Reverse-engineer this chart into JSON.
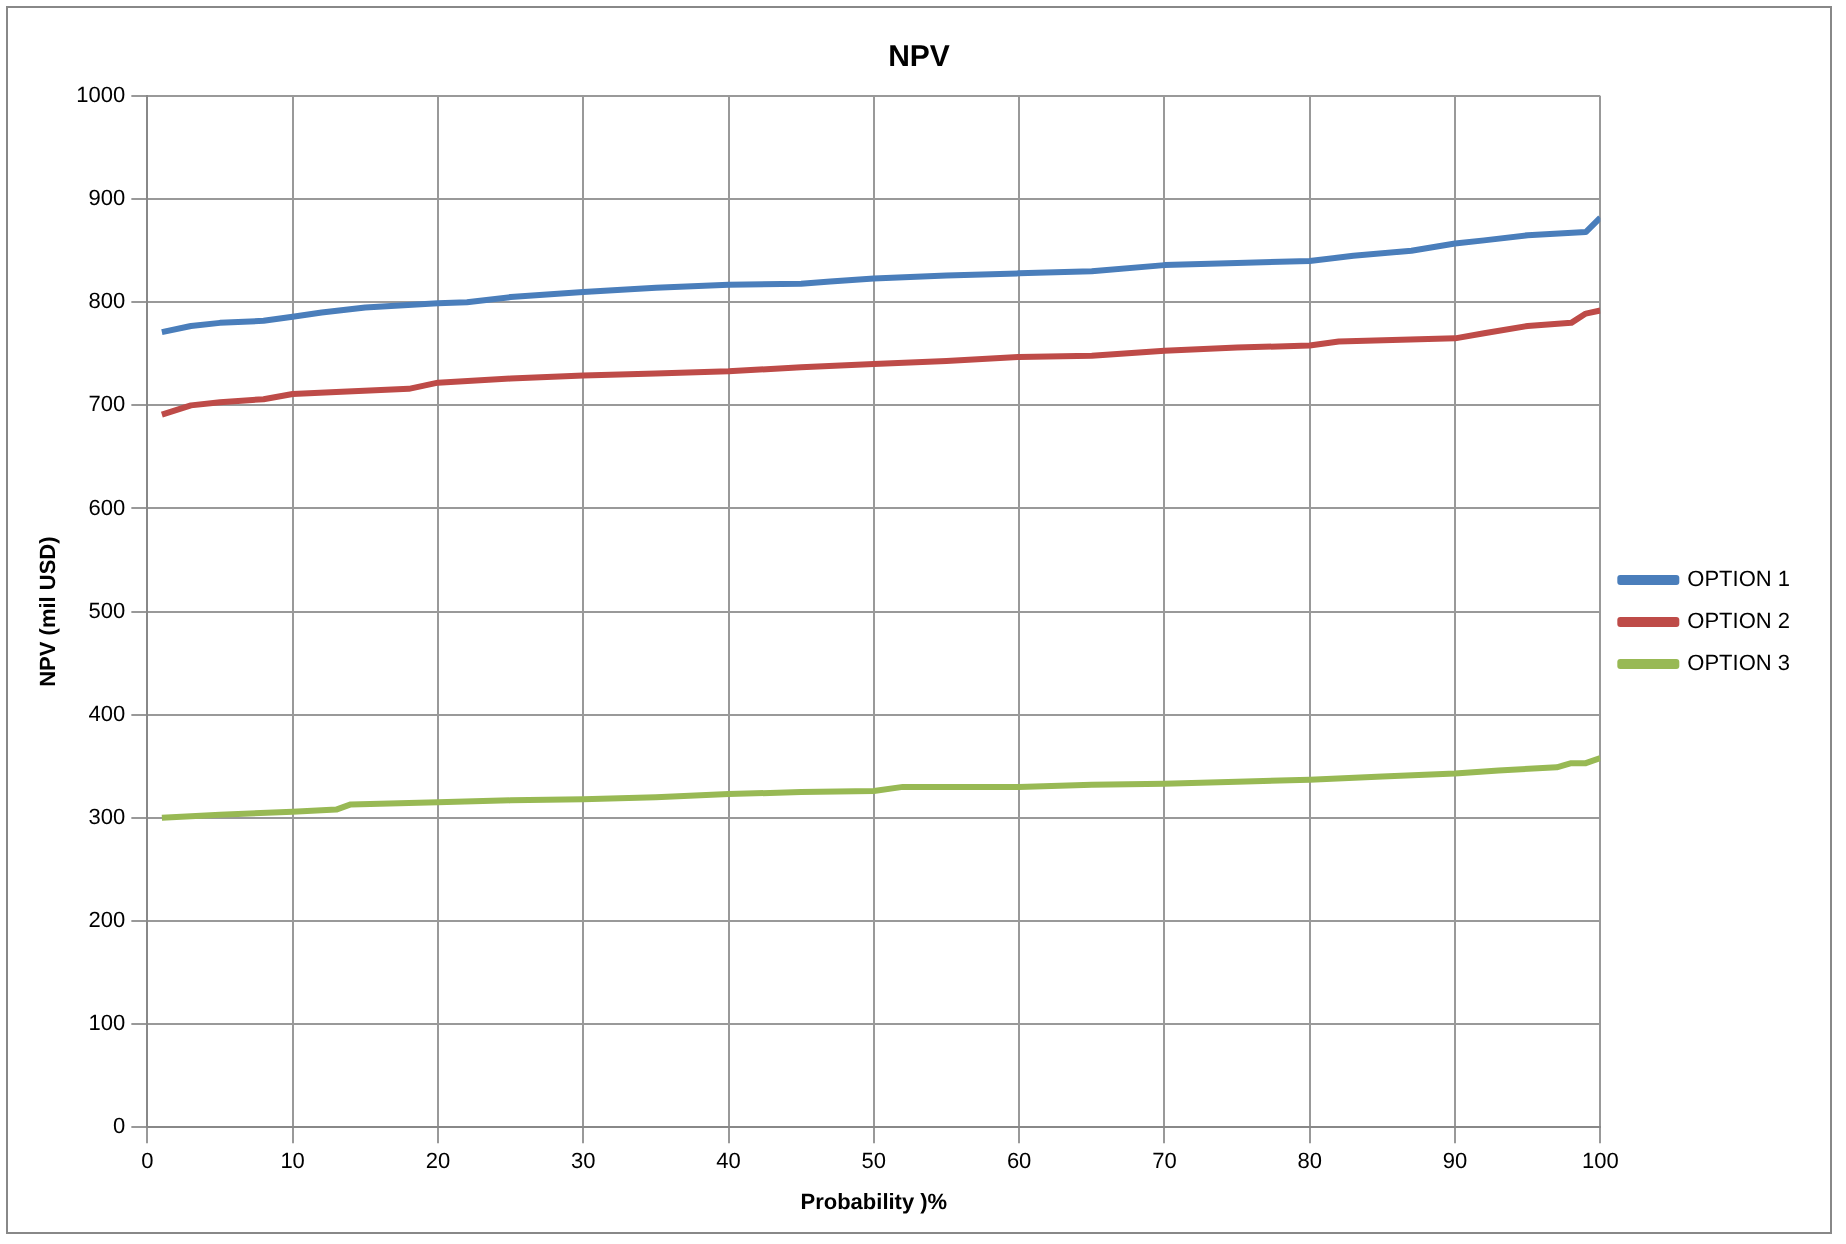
{
  "chart_data": {
    "type": "line",
    "title": "NPV",
    "xlabel": "Probability )%",
    "ylabel": "NPV (mil USD)",
    "xlim": [
      0,
      100
    ],
    "xticks": [
      0,
      10,
      20,
      30,
      40,
      50,
      60,
      70,
      80,
      90,
      100
    ],
    "ylim": [
      0,
      1000
    ],
    "yticks": [
      0,
      100,
      200,
      300,
      400,
      500,
      600,
      700,
      800,
      900,
      1000
    ],
    "grid": true,
    "legend": "right",
    "marker": "none",
    "line_style": "solid",
    "series": [
      {
        "name": "OPTION 1",
        "color": "#4a7ebb",
        "x": [
          1,
          3,
          5,
          8,
          10,
          12,
          15,
          20,
          22,
          25,
          30,
          35,
          40,
          45,
          47,
          50,
          55,
          60,
          65,
          70,
          75,
          80,
          83,
          87,
          90,
          92,
          95,
          99,
          100
        ],
        "values": [
          771,
          777,
          780,
          782,
          786,
          790,
          795,
          799,
          800,
          805,
          810,
          814,
          817,
          818,
          820,
          823,
          826,
          828,
          830,
          836,
          838,
          840,
          845,
          850,
          857,
          860,
          865,
          868,
          882
        ]
      },
      {
        "name": "OPTION 2",
        "color": "#be4b48",
        "x": [
          1,
          3,
          5,
          8,
          10,
          13,
          18,
          20,
          25,
          30,
          35,
          40,
          45,
          50,
          55,
          60,
          65,
          70,
          75,
          80,
          82,
          90,
          92,
          95,
          98,
          99,
          100
        ],
        "values": [
          691,
          700,
          703,
          706,
          711,
          713,
          716,
          722,
          726,
          729,
          731,
          733,
          737,
          740,
          743,
          747,
          748,
          753,
          756,
          758,
          762,
          765,
          770,
          777,
          780,
          789,
          792
        ]
      },
      {
        "name": "OPTION 3",
        "color": "#98b954",
        "x": [
          1,
          5,
          10,
          13,
          14,
          20,
          25,
          30,
          35,
          40,
          45,
          50,
          52,
          60,
          65,
          70,
          75,
          80,
          85,
          90,
          93,
          97,
          98,
          99,
          100
        ],
        "values": [
          300,
          303,
          306,
          308,
          313,
          315,
          317,
          318,
          320,
          323,
          325,
          326,
          330,
          330,
          332,
          333,
          335,
          337,
          340,
          343,
          346,
          349,
          353,
          353,
          358
        ]
      }
    ]
  }
}
